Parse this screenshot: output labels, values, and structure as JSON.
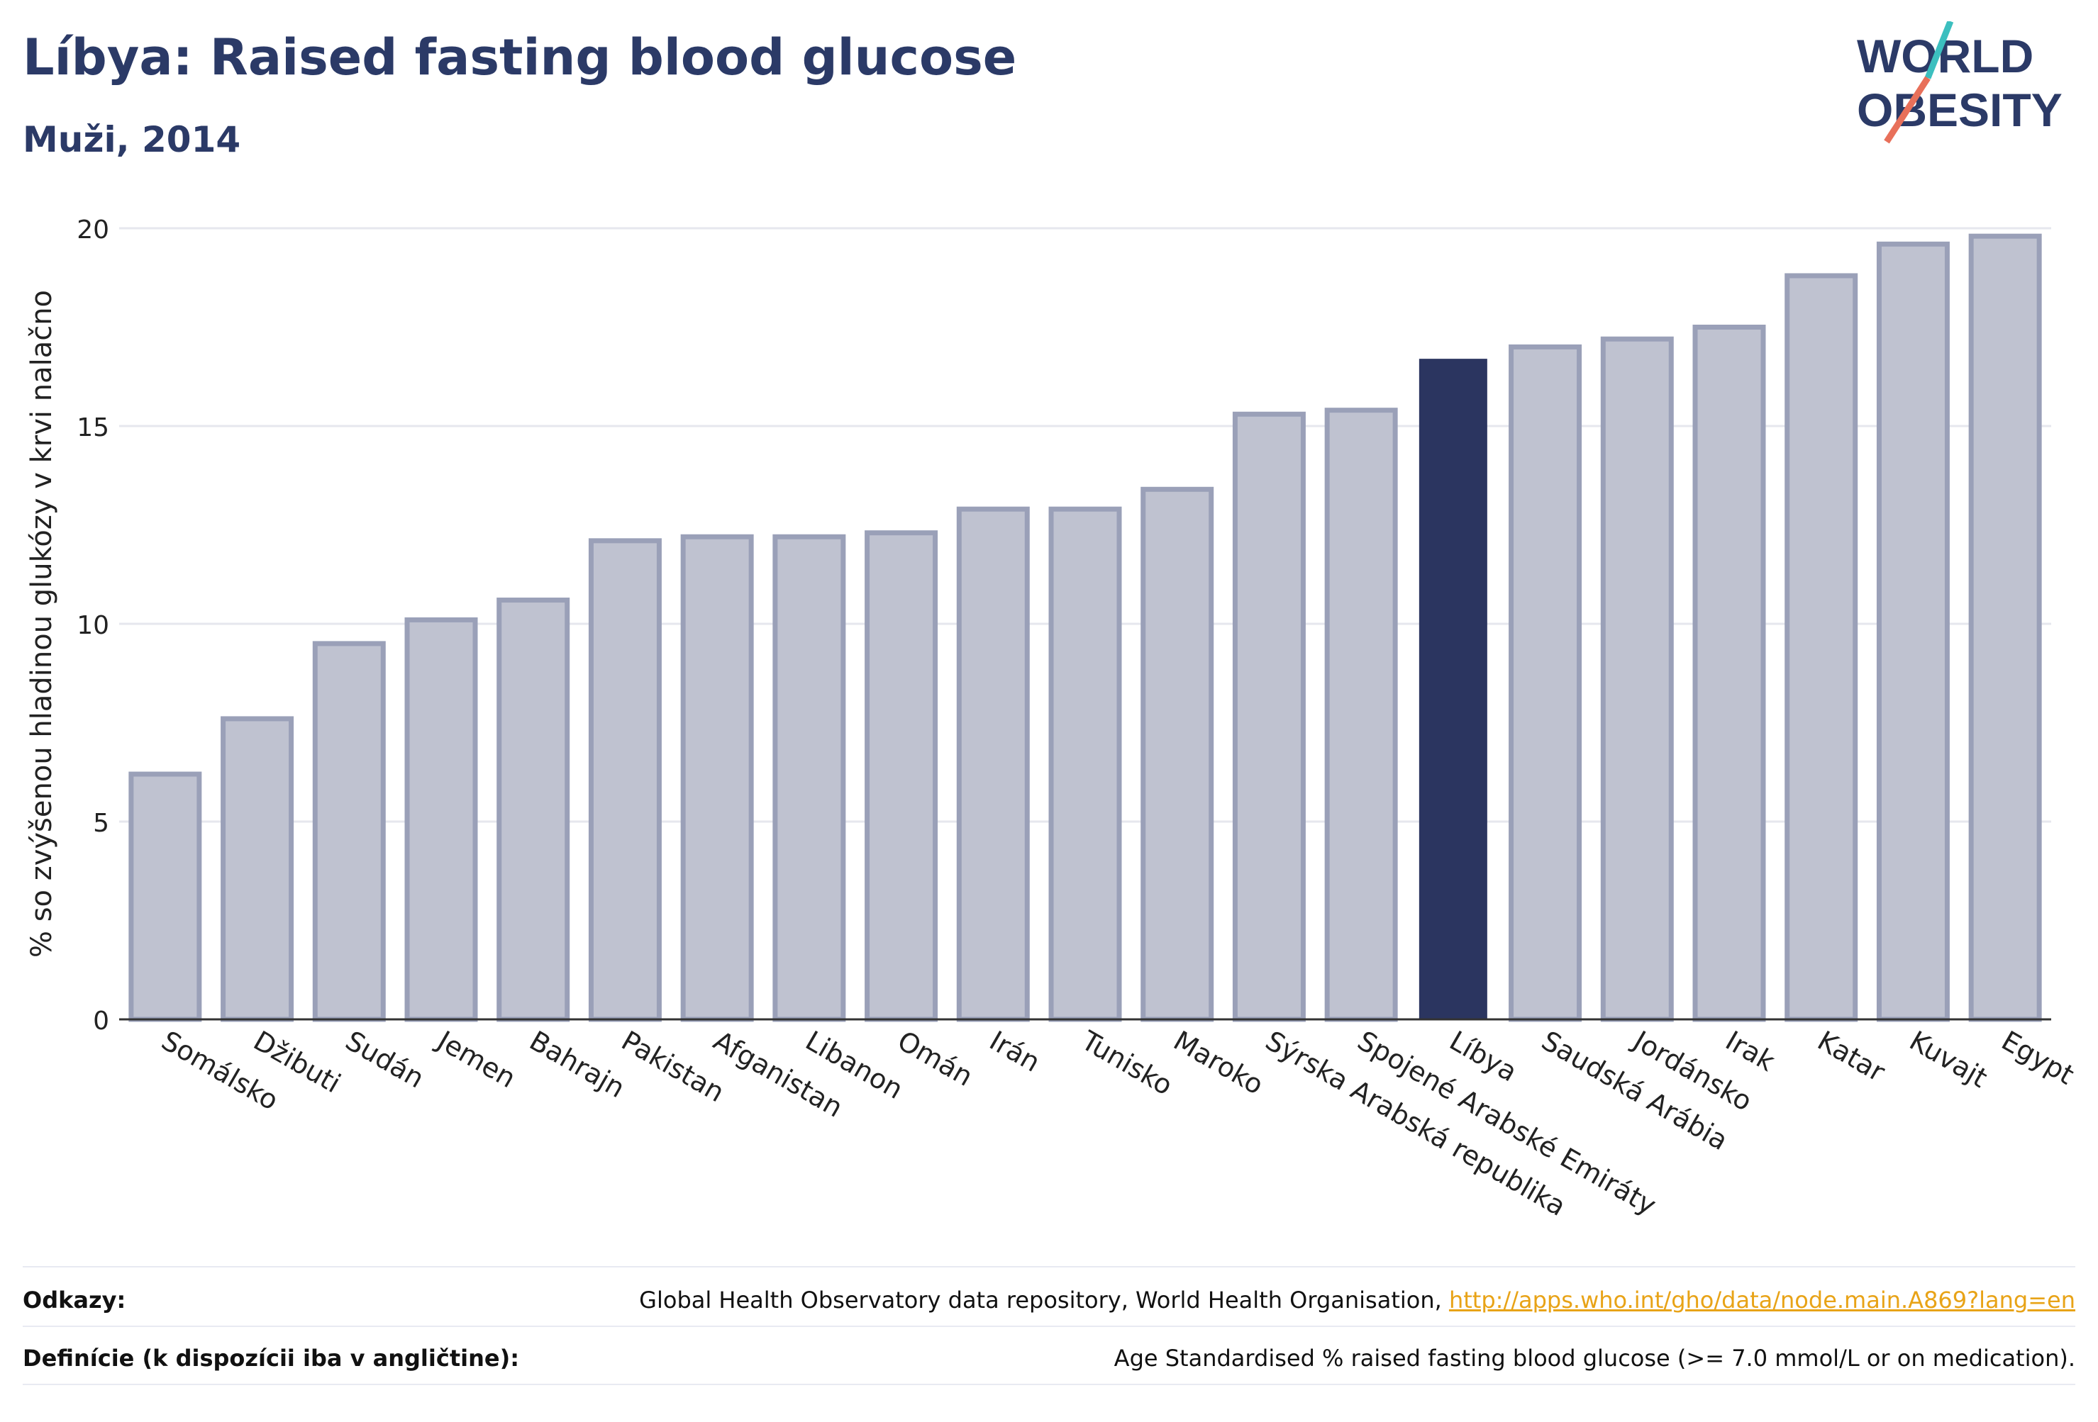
{
  "header": {
    "title": "Líbya: Raised fasting blood glucose",
    "subtitle": "Muži, 2014"
  },
  "logo": {
    "line1": "WORLD",
    "line2": "OBESITY",
    "accent_teal": "#3cbfbf",
    "accent_coral": "#e8705a",
    "color": "#2b3a67"
  },
  "colors": {
    "bar": "#bfc2d0",
    "bar_edge": "#9aa0b8",
    "highlight": "#2b3560",
    "grid": "#e6e7ee",
    "axis": "#333333"
  },
  "chart_data": {
    "type": "bar",
    "ylabel": "% so zvýšenou hladinou glukózy v krvi nalačno",
    "ylim": [
      0,
      20
    ],
    "yticks": [
      0,
      5,
      10,
      15,
      20
    ],
    "grid": true,
    "highlight": "Líbya",
    "categories": [
      "Somálsko",
      "Džibuti",
      "Sudán",
      "Jemen",
      "Bahrajn",
      "Pakistan",
      "Afganistan",
      "Libanon",
      "Omán",
      "Irán",
      "Tunisko",
      "Maroko",
      "Sýrska Arabská republika",
      "Spojené Arabské Emiráty",
      "Líbya",
      "Saudská Arábia",
      "Jordánsko",
      "Irak",
      "Katar",
      "Kuvajt",
      "Egypt"
    ],
    "values": [
      6.2,
      7.6,
      9.5,
      10.1,
      10.6,
      12.1,
      12.2,
      12.2,
      12.3,
      12.9,
      12.9,
      13.4,
      15.3,
      15.4,
      16.7,
      17.0,
      17.2,
      17.5,
      18.8,
      19.6,
      19.8
    ]
  },
  "references": {
    "odkazy_label": "Odkazy:",
    "odkazy_text": "Global Health Observatory data repository, World Health Organisation, ",
    "odkazy_link": "http://apps.who.int/gho/data/node.main.A869?lang=en",
    "definicie_label": "Definície (k dispozícii iba v angličtine):",
    "definicie_text": "Age Standardised % raised fasting blood glucose (>= 7.0 mmol/L or on medication)."
  }
}
